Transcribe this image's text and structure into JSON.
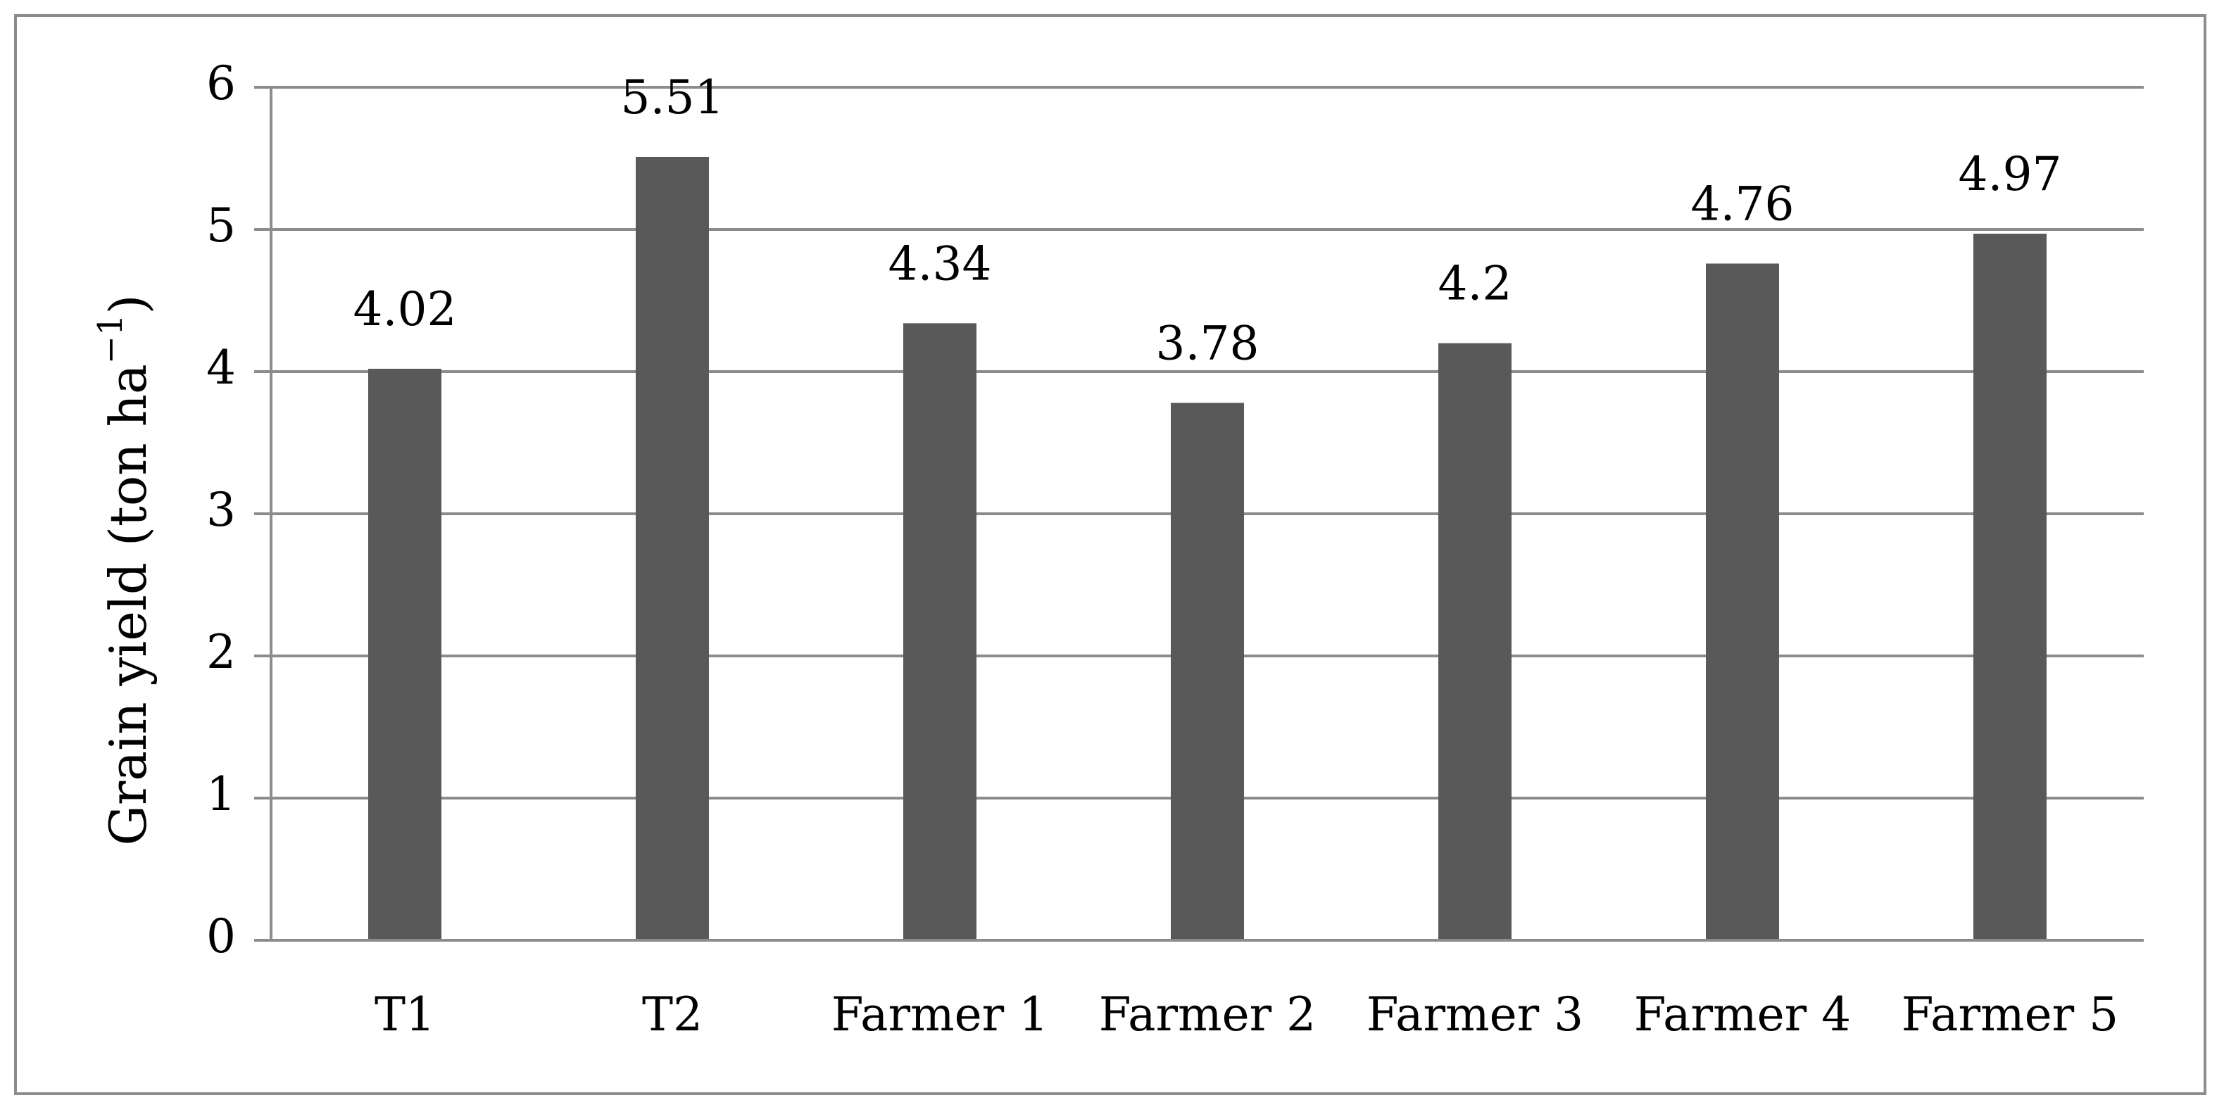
{
  "chart_data": {
    "type": "bar",
    "categories": [
      "T1",
      "T2",
      "Farmer 1",
      "Farmer 2",
      "Farmer 3",
      "Farmer 4",
      "Farmer 5"
    ],
    "values": [
      4.02,
      5.51,
      4.34,
      3.78,
      4.2,
      4.76,
      4.97
    ],
    "data_labels": [
      "4.02",
      "5.51",
      "4.34",
      "3.78",
      "4.2",
      "4.76",
      "4.97"
    ],
    "title": "",
    "xlabel": "",
    "ylabel": {
      "main": "Grain yield (ton ha",
      "superscript": "−1",
      "close": ")"
    },
    "ylim": [
      0,
      6
    ],
    "yticks": [
      "0",
      "1",
      "2",
      "3",
      "4",
      "5",
      "6"
    ],
    "grid": true,
    "legend": "none",
    "colors": {
      "bar": "#595959",
      "grid": "#8c8c8c",
      "border": "#8c8c8c"
    }
  }
}
